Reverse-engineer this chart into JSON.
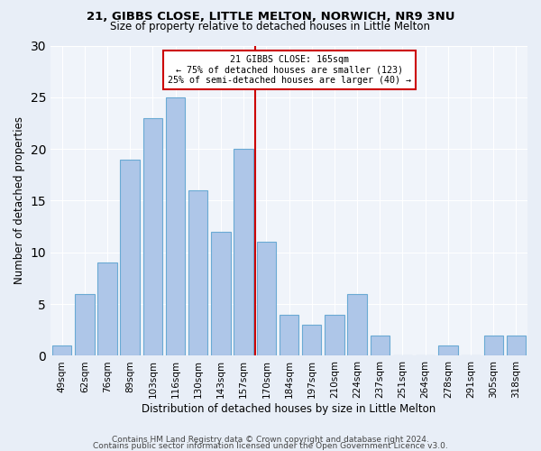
{
  "title_line1": "21, GIBBS CLOSE, LITTLE MELTON, NORWICH, NR9 3NU",
  "title_line2": "Size of property relative to detached houses in Little Melton",
  "xlabel": "Distribution of detached houses by size in Little Melton",
  "ylabel": "Number of detached properties",
  "bar_labels": [
    "49sqm",
    "62sqm",
    "76sqm",
    "89sqm",
    "103sqm",
    "116sqm",
    "130sqm",
    "143sqm",
    "157sqm",
    "170sqm",
    "184sqm",
    "197sqm",
    "210sqm",
    "224sqm",
    "237sqm",
    "251sqm",
    "264sqm",
    "278sqm",
    "291sqm",
    "305sqm",
    "318sqm"
  ],
  "bar_values": [
    1,
    6,
    9,
    19,
    23,
    25,
    16,
    12,
    20,
    11,
    4,
    3,
    4,
    6,
    2,
    0,
    0,
    1,
    0,
    2,
    2
  ],
  "bar_color": "#aec6e8",
  "bar_edge_color": "#6aaad4",
  "reference_line_x": 8.5,
  "reference_line_label": "165sqm",
  "annotation_title": "21 GIBBS CLOSE: 165sqm",
  "annotation_line1": "← 75% of detached houses are smaller (123)",
  "annotation_line2": "25% of semi-detached houses are larger (40) →",
  "annotation_box_color": "#ffffff",
  "annotation_box_edge_color": "#cc0000",
  "ref_line_color": "#cc0000",
  "ylim": [
    0,
    30
  ],
  "yticks": [
    0,
    5,
    10,
    15,
    20,
    25,
    30
  ],
  "footer_line1": "Contains HM Land Registry data © Crown copyright and database right 2024.",
  "footer_line2": "Contains public sector information licensed under the Open Government Licence v3.0.",
  "background_color": "#e8eef7",
  "plot_background_color": "#f0f4fa"
}
